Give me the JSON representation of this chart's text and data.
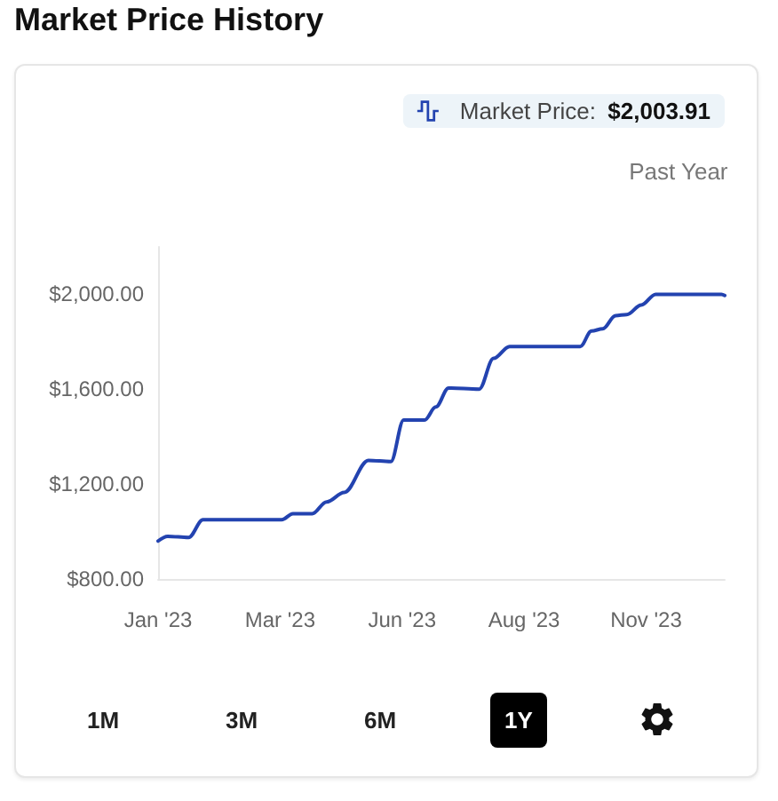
{
  "chart_data": {
    "type": "line",
    "title": "Market Price History",
    "subtitle": "Past Year",
    "x": [
      "2023-01-01",
      "2023-01-07",
      "2023-01-20",
      "2023-01-29",
      "2023-03-19",
      "2023-03-26",
      "2023-04-07",
      "2023-04-16",
      "2023-04-27",
      "2023-05-12",
      "2023-05-26",
      "2023-06-03",
      "2023-06-16",
      "2023-06-23",
      "2023-07-01",
      "2023-07-20",
      "2023-07-29",
      "2023-08-08",
      "2023-09-21",
      "2023-09-28",
      "2023-10-05",
      "2023-10-13",
      "2023-10-20",
      "2023-10-29",
      "2023-11-07",
      "2023-12-18",
      "2023-12-20"
    ],
    "series": [
      {
        "name": "Market Price:",
        "color": "#2343b0",
        "values": [
          960,
          980,
          975,
          1050,
          1050,
          1075,
          1075,
          1125,
          1165,
          1300,
          1295,
          1470,
          1470,
          1525,
          1605,
          1600,
          1730,
          1780,
          1780,
          1845,
          1855,
          1910,
          1915,
          1955,
          2000,
          2000,
          1995
        ]
      }
    ],
    "xlim": [
      "2023-01-01",
      "2023-12-20"
    ],
    "xticks": [
      {
        "value": "2023-01-01",
        "label": "Jan '23"
      },
      {
        "value": "2023-03-18",
        "label": "Mar '23"
      },
      {
        "value": "2023-06-02",
        "label": "Jun '23"
      },
      {
        "value": "2023-08-17",
        "label": "Aug '23"
      },
      {
        "value": "2023-11-01",
        "label": "Nov '23"
      }
    ],
    "ylim": [
      800,
      2200
    ],
    "yticks": [
      {
        "value": 800,
        "label": "$800.00"
      },
      {
        "value": 1200,
        "label": "$1,200.00"
      },
      {
        "value": 1600,
        "label": "$1,600.00"
      },
      {
        "value": 2000,
        "label": "$2,000.00"
      }
    ],
    "grid": false,
    "legend": "top right",
    "annotations": [
      "$2,003.91",
      "1M",
      "3M",
      "6M",
      "1Y"
    ]
  }
}
